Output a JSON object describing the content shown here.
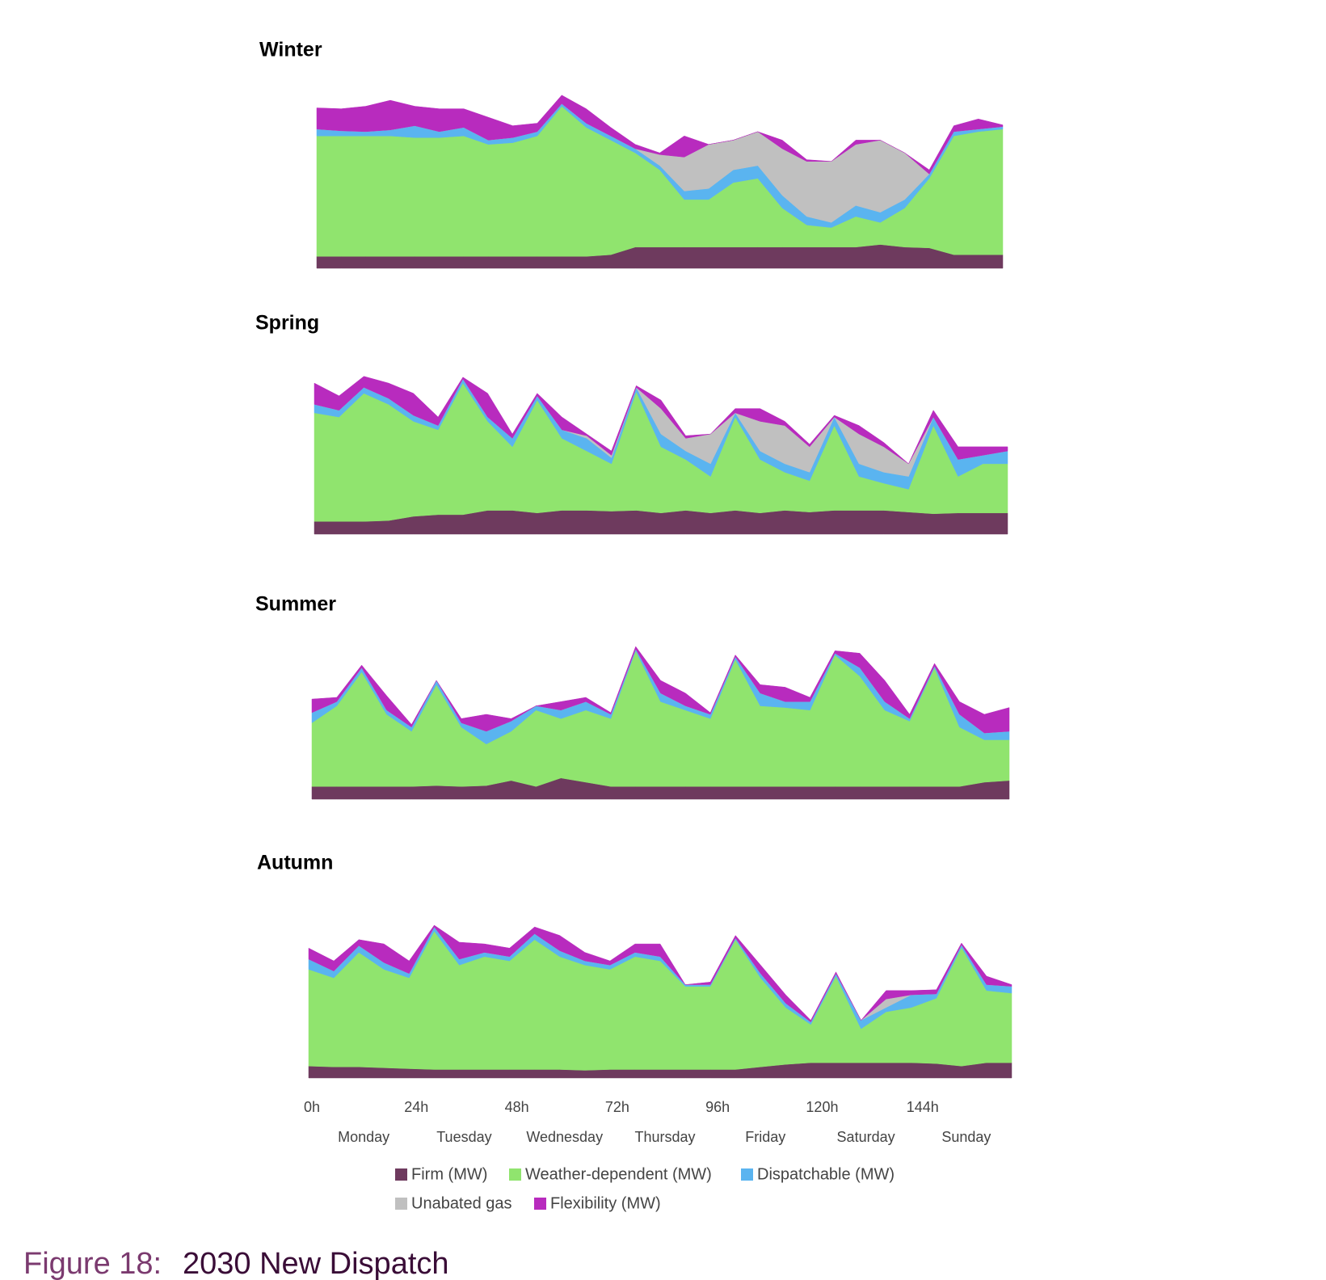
{
  "chart_data": [
    {
      "type": "area",
      "stacked": true,
      "title": "Winter",
      "x": [
        0,
        6,
        12,
        18,
        24,
        30,
        36,
        42,
        48,
        54,
        60,
        66,
        72,
        78,
        84,
        90,
        96,
        102,
        108,
        114,
        120,
        126,
        132,
        138,
        144,
        150,
        156,
        162,
        168
      ],
      "xlim": [
        0,
        168
      ],
      "ylim": [
        0,
        110
      ],
      "series": [
        {
          "color": "#6e3a5e",
          "values": [
            7,
            7,
            7,
            7,
            7,
            7,
            7,
            7,
            7,
            7,
            7,
            7,
            8,
            12.5,
            12.5,
            12.5,
            12.5,
            12.5,
            12.5,
            12.5,
            12.5,
            12.5,
            12.5,
            14,
            12.5,
            12,
            8,
            8,
            8
          ]
        },
        {
          "color": "#90e46e",
          "values": [
            71,
            71,
            71,
            71,
            70,
            70,
            71,
            66,
            67,
            71,
            88.5,
            76,
            67.5,
            55.5,
            45.5,
            28,
            28,
            38,
            40.5,
            23,
            13,
            11.5,
            18,
            13,
            23,
            41,
            70,
            72.5,
            74
          ]
        },
        {
          "color": "#5ab4f0",
          "values": [
            4,
            3,
            2.5,
            3.5,
            7,
            3.5,
            5,
            2.5,
            3,
            2.5,
            1.5,
            2.5,
            2.5,
            2.5,
            2.5,
            5,
            6.5,
            7.5,
            7.5,
            7.5,
            5,
            3,
            6.5,
            6,
            5,
            2.5,
            2.5,
            1.5,
            1.5
          ]
        },
        {
          "color": "#c0c0c0",
          "values": [
            0,
            0,
            0,
            0,
            0,
            0,
            0,
            0,
            0,
            0,
            0,
            0,
            0,
            0,
            6.5,
            20,
            26,
            17.5,
            20,
            27.5,
            32.5,
            36,
            36,
            42.5,
            27.5,
            0,
            0,
            0,
            0
          ]
        },
        {
          "color": "#b82bbe",
          "values": [
            12.5,
            13,
            15,
            17.5,
            11.5,
            13.5,
            11,
            13.5,
            7,
            5,
            5,
            8.5,
            5,
            2.5,
            1,
            12.5,
            0,
            0,
            0,
            5,
            1,
            0,
            2.5,
            0,
            0,
            2.5,
            3.5,
            6,
            1
          ]
        }
      ]
    },
    {
      "type": "area",
      "stacked": true,
      "title": "Spring",
      "x": [
        0,
        6,
        12,
        18,
        24,
        30,
        36,
        42,
        48,
        54,
        60,
        66,
        72,
        78,
        84,
        90,
        96,
        102,
        108,
        114,
        120,
        126,
        132,
        138,
        144,
        150,
        156,
        162,
        168
      ],
      "xlim": [
        0,
        168
      ],
      "ylim": [
        0,
        110
      ],
      "series": [
        {
          "color": "#6e3a5e",
          "values": [
            7.5,
            7.5,
            7.5,
            8,
            10.5,
            11.5,
            11.5,
            14,
            14,
            12.5,
            14,
            14,
            13.5,
            14,
            12.5,
            14,
            12.5,
            14,
            12.5,
            14,
            13,
            14,
            14,
            14,
            13,
            12,
            12.5,
            12.5,
            12.5
          ]
        },
        {
          "color": "#90e46e",
          "values": [
            64,
            61.5,
            75.5,
            68.5,
            56,
            50,
            77.5,
            52.5,
            37.5,
            66.5,
            42.5,
            35,
            28,
            70,
            39,
            30,
            21.5,
            55,
            31.5,
            22.5,
            18.5,
            50,
            20,
            16,
            13.5,
            52,
            21.5,
            29,
            29
          ]
        },
        {
          "color": "#5ab4f0",
          "values": [
            5,
            4,
            3.5,
            3.5,
            3.5,
            2.5,
            2.5,
            2.5,
            5,
            2.5,
            5,
            7.5,
            3.5,
            2.5,
            7.5,
            5,
            7.5,
            2.5,
            5,
            5,
            5,
            5,
            7.5,
            6.5,
            7.5,
            5,
            10,
            5,
            7.5
          ]
        },
        {
          "color": "#c0c0c0",
          "values": [
            0,
            0,
            0,
            0,
            0,
            0,
            0,
            0,
            0,
            0,
            0,
            1.5,
            1.5,
            0,
            15,
            7.5,
            17.5,
            0,
            17.5,
            22.5,
            15,
            0,
            17.5,
            15,
            7.5,
            0,
            0,
            0,
            0
          ]
        },
        {
          "color": "#b82bbe",
          "values": [
            12.5,
            8.5,
            6.5,
            9,
            13,
            5,
            1,
            14,
            2.5,
            1.5,
            7.5,
            1,
            2.5,
            1,
            5,
            1.5,
            0,
            2.5,
            7.5,
            2.5,
            1.5,
            1,
            5,
            2.5,
            0,
            4,
            7.5,
            5,
            2.5
          ]
        }
      ]
    },
    {
      "type": "area",
      "stacked": true,
      "title": "Summer",
      "x": [
        0,
        6,
        12,
        18,
        24,
        30,
        36,
        42,
        48,
        54,
        60,
        66,
        72,
        78,
        84,
        90,
        96,
        102,
        108,
        114,
        120,
        126,
        132,
        138,
        144,
        150,
        156,
        162,
        168
      ],
      "xlim": [
        0,
        168
      ],
      "ylim": [
        0,
        110
      ],
      "series": [
        {
          "color": "#6e3a5e",
          "values": [
            7.5,
            7.5,
            7.5,
            7.5,
            7.5,
            8,
            7.5,
            8,
            11,
            7.5,
            12.5,
            10,
            7.5,
            7.5,
            7.5,
            7.5,
            7.5,
            7.5,
            7.5,
            7.5,
            7.5,
            7.5,
            7.5,
            7.5,
            7.5,
            7.5,
            7.5,
            10,
            11
          ]
        },
        {
          "color": "#90e46e",
          "values": [
            37.5,
            47.5,
            67.5,
            42.5,
            32.5,
            59.5,
            35,
            24.5,
            29,
            45,
            35,
            42.5,
            40,
            80,
            50,
            45,
            40,
            75,
            47.5,
            46.5,
            45,
            77.5,
            65,
            45,
            38.5,
            70,
            35,
            25,
            24
          ]
        },
        {
          "color": "#5ab4f0",
          "values": [
            6,
            2.5,
            2.5,
            2.5,
            2.5,
            2.5,
            2.5,
            7.5,
            6,
            2.5,
            5,
            5,
            2.5,
            1,
            5,
            2.5,
            2.5,
            1.5,
            7.5,
            3.5,
            5,
            1,
            5,
            5,
            1.5,
            1,
            7.5,
            4,
            5
          ]
        },
        {
          "color": "#c0c0c0",
          "values": [
            0,
            0,
            0,
            0,
            0,
            0,
            0,
            0,
            0,
            0,
            0,
            0,
            0,
            0,
            0,
            0,
            0,
            0,
            0,
            0,
            0,
            0,
            0,
            0,
            0,
            0,
            0,
            0,
            0
          ]
        },
        {
          "color": "#b82bbe",
          "values": [
            8,
            2.5,
            1.5,
            8.5,
            1.5,
            0,
            2.5,
            10,
            1.5,
            0,
            5,
            2.5,
            1,
            1.5,
            7.5,
            7.5,
            1,
            1,
            5,
            8.5,
            2.5,
            1.5,
            8.5,
            12.5,
            2.5,
            1.5,
            7.5,
            11,
            14
          ]
        }
      ]
    },
    {
      "type": "area",
      "stacked": true,
      "title": "Autumn",
      "x": [
        0,
        6,
        12,
        18,
        24,
        30,
        36,
        42,
        48,
        54,
        60,
        66,
        72,
        78,
        84,
        90,
        96,
        102,
        108,
        114,
        120,
        126,
        132,
        138,
        144,
        150,
        156,
        162,
        168
      ],
      "xlim": [
        0,
        168
      ],
      "ylim": [
        0,
        110
      ],
      "xticks": [
        {
          "value": 0,
          "label": "0h"
        },
        {
          "value": 24,
          "label": "24h"
        },
        {
          "value": 48,
          "label": "48h"
        },
        {
          "value": 72,
          "label": "72h"
        },
        {
          "value": 96,
          "label": "96h"
        },
        {
          "value": 120,
          "label": "120h"
        },
        {
          "value": 144,
          "label": "144h"
        }
      ],
      "day_ticks": [
        {
          "value": 12,
          "label": "Monday"
        },
        {
          "value": 36,
          "label": "Tuesday"
        },
        {
          "value": 60,
          "label": "Wednesday"
        },
        {
          "value": 84,
          "label": "Thursday"
        },
        {
          "value": 108,
          "label": "Friday"
        },
        {
          "value": 132,
          "label": "Saturday"
        },
        {
          "value": 156,
          "label": "Sunday"
        }
      ],
      "series": [
        {
          "name": "Firm (MW)",
          "color": "#6e3a5e",
          "values": [
            7,
            6.5,
            6.5,
            6,
            5.5,
            5,
            5,
            5,
            5,
            5,
            5,
            4.5,
            5,
            5,
            5,
            5,
            5,
            5,
            6.5,
            8,
            9,
            9,
            9,
            9,
            9,
            8.5,
            7,
            9,
            9
          ]
        },
        {
          "name": "Weather-dependent (MW)",
          "color": "#90e46e",
          "values": [
            57,
            52.5,
            67.5,
            58,
            53.5,
            81.5,
            61.5,
            66.5,
            64,
            76.5,
            66.5,
            62,
            59,
            66.5,
            64,
            49,
            49,
            76.5,
            52.5,
            33.5,
            22.5,
            51,
            20,
            30,
            32.5,
            38.5,
            70,
            42.5,
            41
          ]
        },
        {
          "name": "Dispatchable (MW)",
          "color": "#5ab4f0",
          "values": [
            6,
            4,
            4,
            4,
            2.5,
            2.5,
            3.5,
            2.5,
            2.5,
            3.5,
            3.5,
            2.5,
            2.5,
            2.5,
            2.5,
            1,
            1,
            1,
            2.5,
            2.5,
            1.5,
            1.5,
            5,
            2.5,
            7.5,
            2.5,
            1.5,
            3.5,
            4
          ]
        },
        {
          "name": "Unabated gas",
          "color": "#c0c0c0",
          "values": [
            0,
            0,
            0,
            0,
            0,
            0,
            0,
            0,
            0,
            0,
            0,
            0,
            0,
            0,
            0,
            0,
            0,
            0,
            0,
            0,
            0,
            0,
            0,
            5,
            0,
            0,
            0,
            0,
            0
          ]
        },
        {
          "name": "Flexibility (MW)",
          "color": "#b82bbe",
          "values": [
            6.5,
            6,
            3.5,
            11,
            7.5,
            1,
            10,
            5,
            5,
            4,
            9,
            5,
            2.5,
            5,
            7.5,
            0,
            1.5,
            1.5,
            5,
            5,
            1,
            1,
            0,
            5,
            2.5,
            2.5,
            1,
            5,
            1
          ]
        }
      ]
    }
  ],
  "caption": {
    "label": "Figure 18:",
    "text": "2030 New Dispatch"
  }
}
